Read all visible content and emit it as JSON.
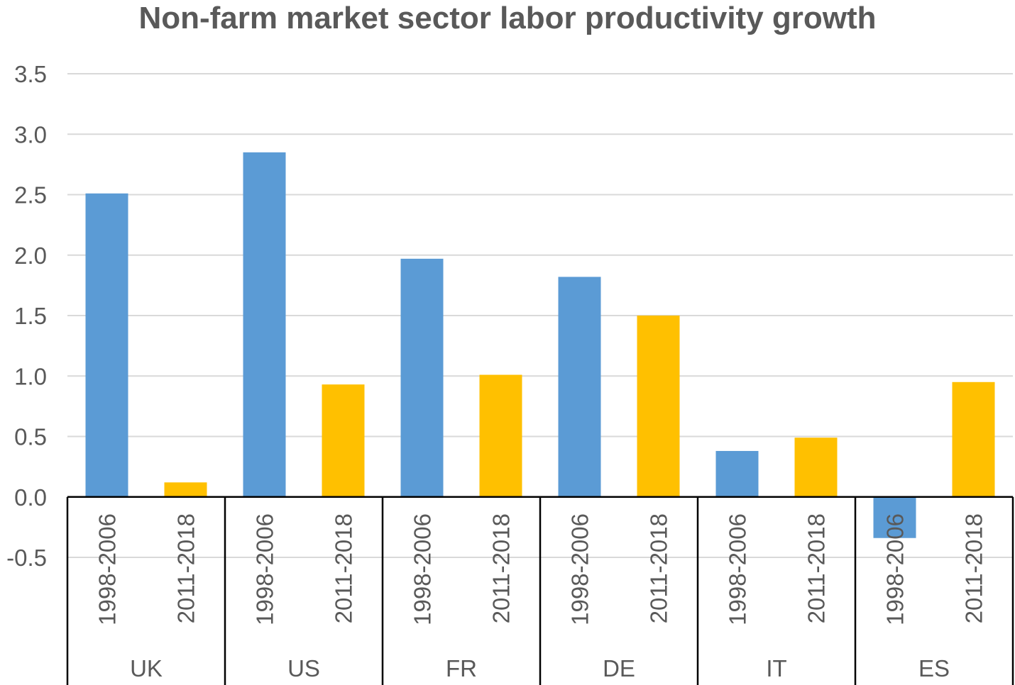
{
  "chart_data": {
    "type": "bar",
    "title": "Non-farm market sector labor productivity growth",
    "xlabel": "",
    "ylabel": "",
    "ylim": [
      -0.5,
      3.5
    ],
    "yticks": [
      "3.5",
      "3.0",
      "2.5",
      "2.0",
      "1.5",
      "1.0",
      "0.5",
      "0.0",
      "-0.5"
    ],
    "grid": true,
    "legend": "none",
    "groups": [
      "UK",
      "US",
      "FR",
      "DE",
      "IT",
      "ES"
    ],
    "periods": [
      "1998-2006",
      "2011-2018"
    ],
    "colors": {
      "1998-2006": "#5b9bd5",
      "2011-2018": "#ffc000"
    },
    "bars": [
      {
        "group": "UK",
        "period": "1998-2006",
        "value": 2.51
      },
      {
        "group": "UK",
        "period": "2011-2018",
        "value": 0.12
      },
      {
        "group": "US",
        "period": "1998-2006",
        "value": 2.85
      },
      {
        "group": "US",
        "period": "2011-2018",
        "value": 0.93
      },
      {
        "group": "FR",
        "period": "1998-2006",
        "value": 1.97
      },
      {
        "group": "FR",
        "period": "2011-2018",
        "value": 1.01
      },
      {
        "group": "DE",
        "period": "1998-2006",
        "value": 1.82
      },
      {
        "group": "DE",
        "period": "2011-2018",
        "value": 1.5
      },
      {
        "group": "IT",
        "period": "1998-2006",
        "value": 0.38
      },
      {
        "group": "IT",
        "period": "2011-2018",
        "value": 0.49
      },
      {
        "group": "ES",
        "period": "1998-2006",
        "value": -0.34
      },
      {
        "group": "ES",
        "period": "2011-2018",
        "value": 0.95
      }
    ]
  }
}
